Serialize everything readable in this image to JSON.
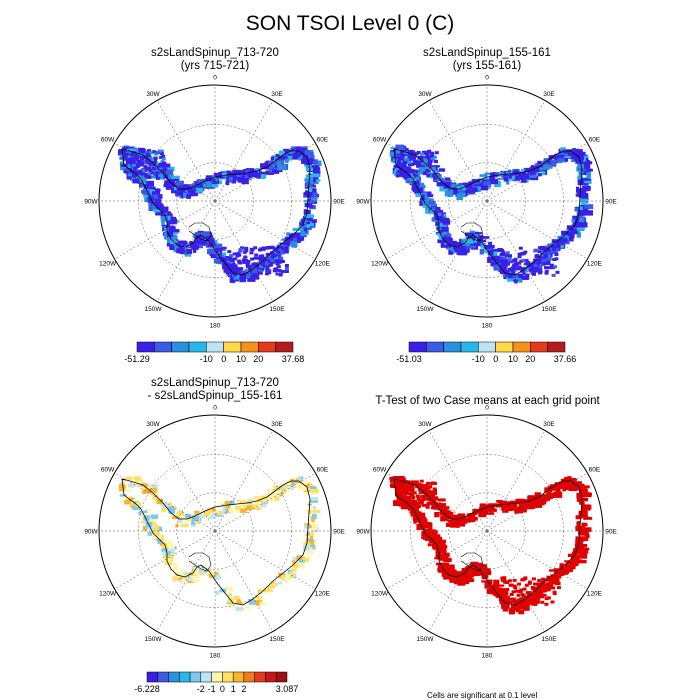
{
  "title": "SON TSOI Level 0 (C)",
  "panels": [
    {
      "id": "case1",
      "title1": "s2sLandSpinup_713-720",
      "title2": "(yrs 715-721)",
      "field": "mean"
    },
    {
      "id": "case2",
      "title1": "s2sLandSpinup_155-161",
      "title2": "(yrs 155-161)",
      "field": "mean"
    },
    {
      "id": "diff",
      "title1": "s2sLandSpinup_713-720",
      "title2": "- s2sLandSpinup_155-161",
      "field": "difference"
    },
    {
      "id": "ttest",
      "title1": "T-Test of two Case means at each grid point",
      "title2": "",
      "field": "significance"
    }
  ],
  "map": {
    "projection": "south-polar-stereographic",
    "longitude_labels": [
      "0",
      "30E",
      "60E",
      "90E",
      "120E",
      "150E",
      "180",
      "150W",
      "120W",
      "90W",
      "60W",
      "30W"
    ],
    "grid": true
  },
  "colorbars": {
    "case1": {
      "min_label": "-51.29",
      "ticks": [
        "-10",
        "0",
        "10",
        "20"
      ],
      "max_label": "37.68",
      "colors": [
        "#3a1fe8",
        "#3b5ce6",
        "#2b90e0",
        "#29b7ea",
        "#bde4f4",
        "#ffd84a",
        "#f7911e",
        "#e33a1b",
        "#b71c1c"
      ]
    },
    "case2": {
      "min_label": "-51.03",
      "ticks": [
        "-10",
        "0",
        "10",
        "20"
      ],
      "max_label": "37.66",
      "colors": [
        "#3a1fe8",
        "#3b5ce6",
        "#2b90e0",
        "#29b7ea",
        "#bde4f4",
        "#ffd84a",
        "#f7911e",
        "#e33a1b",
        "#b71c1c"
      ]
    },
    "diff": {
      "min_label": "-6.228",
      "ticks": [
        "-2",
        "-1",
        "0",
        "1",
        "2"
      ],
      "max_label": "3.087",
      "colors": [
        "#3a1fe8",
        "#3b5ce6",
        "#2b90e0",
        "#29b7ea",
        "#7ec8ee",
        "#bde4f4",
        "#fff4b0",
        "#ffe066",
        "#f7b42c",
        "#f07d1a",
        "#e33a1b",
        "#c8161b",
        "#9c1010"
      ]
    }
  },
  "ttest_note": "Cells are significant at 0.1 level"
}
